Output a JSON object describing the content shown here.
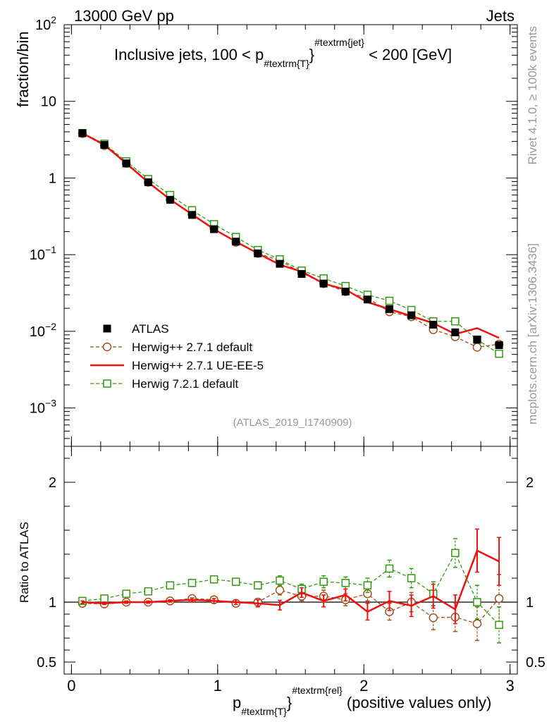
{
  "header": {
    "left": "13000 GeV pp",
    "right": "Jets"
  },
  "side_labels": {
    "rivet": "Rivet 4.1.0, ≥ 100k events",
    "mcplots": "mcplots.cern.ch [arXiv:1306.3436]"
  },
  "chart_data": {
    "type": "line",
    "title_main": "Inclusive jets, 100 < p",
    "title_sub": "#textrm{T}",
    "title_sup": "#textrm{jet}",
    "title_end": " < 200 [GeV]",
    "analysis_id": "(ATLAS_2019_I1740909)",
    "ylabel_top": "fraction/bin",
    "ylabel_ratio": "Ratio to ATLAS",
    "xlabel_main": "p",
    "xlabel_sub": "#textrm{T}",
    "xlabel_sup": "#textrm{rel}",
    "xlabel_end": " (positive values only)",
    "xlim": [
      -0.05,
      3.05
    ],
    "ylim_top_log10": [
      -3.5,
      2
    ],
    "ylim_ratio": [
      0.4,
      2.3
    ],
    "x_ticks": [
      {
        "value": 0,
        "label": "0"
      },
      {
        "value": 1,
        "label": "1"
      },
      {
        "value": 2,
        "label": "2"
      },
      {
        "value": 3,
        "label": "3"
      }
    ],
    "y_ticks_top": [
      {
        "exp": 2,
        "label": "10",
        "sup": "2"
      },
      {
        "exp": 1,
        "label": "10",
        "sup": ""
      },
      {
        "exp": 0,
        "label": "1",
        "sup": ""
      },
      {
        "exp": -1,
        "label": "10",
        "sup": "−1"
      },
      {
        "exp": -2,
        "label": "10",
        "sup": "−2"
      },
      {
        "exp": -3,
        "label": "10",
        "sup": "−3"
      }
    ],
    "y_ticks_ratio": [
      {
        "value": 0.5,
        "label": "0.5"
      },
      {
        "value": 1,
        "label": "1"
      },
      {
        "value": 2,
        "label": "2"
      }
    ],
    "x": [
      0.075,
      0.225,
      0.375,
      0.525,
      0.675,
      0.825,
      0.975,
      1.125,
      1.275,
      1.425,
      1.575,
      1.725,
      1.875,
      2.025,
      2.175,
      2.325,
      2.475,
      2.625,
      2.775,
      2.925
    ],
    "legend": [
      {
        "name": "ATLAS",
        "style": "data"
      },
      {
        "name": "Herwig++ 2.7.1 default",
        "style": "circle-dashed"
      },
      {
        "name": "Herwig++ 2.7.1 UE-EE-5",
        "style": "solid"
      },
      {
        "name": "Herwig 7.2.1 default",
        "style": "square-dashed"
      }
    ],
    "series": [
      {
        "name": "ATLAS",
        "color": "#000000",
        "values": [
          3.85,
          2.7,
          1.55,
          0.88,
          0.52,
          0.33,
          0.215,
          0.148,
          0.104,
          0.076,
          0.056,
          0.042,
          0.033,
          0.026,
          0.0195,
          0.0162,
          0.0122,
          0.0097,
          0.0078,
          0.0066
        ]
      },
      {
        "name": "Herwig++ 2.7.1 default",
        "color": "#a0521d",
        "values": [
          3.8,
          2.65,
          1.55,
          0.88,
          0.525,
          0.335,
          0.22,
          0.145,
          0.104,
          0.084,
          0.058,
          0.042,
          0.033,
          0.027,
          0.018,
          0.0155,
          0.0105,
          0.0085,
          0.0062,
          0.0068
        ],
        "ratio": [
          0.99,
          0.985,
          1.0,
          1.0,
          1.01,
          1.03,
          1.02,
          0.99,
          1.0,
          1.1,
          1.05,
          1.05,
          1.02,
          1.07,
          0.92,
          1.0,
          0.87,
          0.875,
          0.82,
          1.03
        ],
        "ratio_err": [
          0.01,
          0.01,
          0.01,
          0.01,
          0.01,
          0.015,
          0.02,
          0.02,
          0.03,
          0.04,
          0.04,
          0.05,
          0.05,
          0.06,
          0.07,
          0.08,
          0.1,
          0.12,
          0.14,
          0.2
        ]
      },
      {
        "name": "Herwig++ 2.7.1 UE-EE-5",
        "color": "#ee1111",
        "values": [
          3.85,
          2.7,
          1.55,
          0.88,
          0.525,
          0.335,
          0.215,
          0.148,
          0.104,
          0.074,
          0.06,
          0.042,
          0.035,
          0.024,
          0.0195,
          0.0158,
          0.0128,
          0.0092,
          0.011,
          0.0082
        ],
        "ratio": [
          1.0,
          0.99,
          1.0,
          1.0,
          1.01,
          1.02,
          1.01,
          1.0,
          0.99,
          0.975,
          1.08,
          1.01,
          1.06,
          0.92,
          1.01,
          0.97,
          1.05,
          0.94,
          1.43,
          1.34
        ],
        "ratio_err": [
          0.01,
          0.01,
          0.01,
          0.01,
          0.01,
          0.015,
          0.02,
          0.02,
          0.03,
          0.04,
          0.04,
          0.05,
          0.05,
          0.07,
          0.08,
          0.09,
          0.1,
          0.12,
          0.18,
          0.2
        ]
      },
      {
        "name": "Herwig 7.2.1 default",
        "color": "#339911",
        "values": [
          3.85,
          2.8,
          1.65,
          0.97,
          0.6,
          0.38,
          0.25,
          0.17,
          0.115,
          0.087,
          0.062,
          0.049,
          0.039,
          0.03,
          0.025,
          0.019,
          0.0135,
          0.0135,
          0.0078,
          0.0051
        ],
        "ratio": [
          1.01,
          1.03,
          1.07,
          1.09,
          1.14,
          1.16,
          1.19,
          1.17,
          1.14,
          1.18,
          1.11,
          1.17,
          1.16,
          1.14,
          1.28,
          1.2,
          1.07,
          1.41,
          1.0,
          0.81
        ],
        "ratio_err": [
          0.01,
          0.01,
          0.01,
          0.01,
          0.015,
          0.015,
          0.02,
          0.02,
          0.03,
          0.04,
          0.04,
          0.05,
          0.05,
          0.06,
          0.07,
          0.08,
          0.1,
          0.12,
          0.14,
          0.15
        ]
      }
    ]
  }
}
